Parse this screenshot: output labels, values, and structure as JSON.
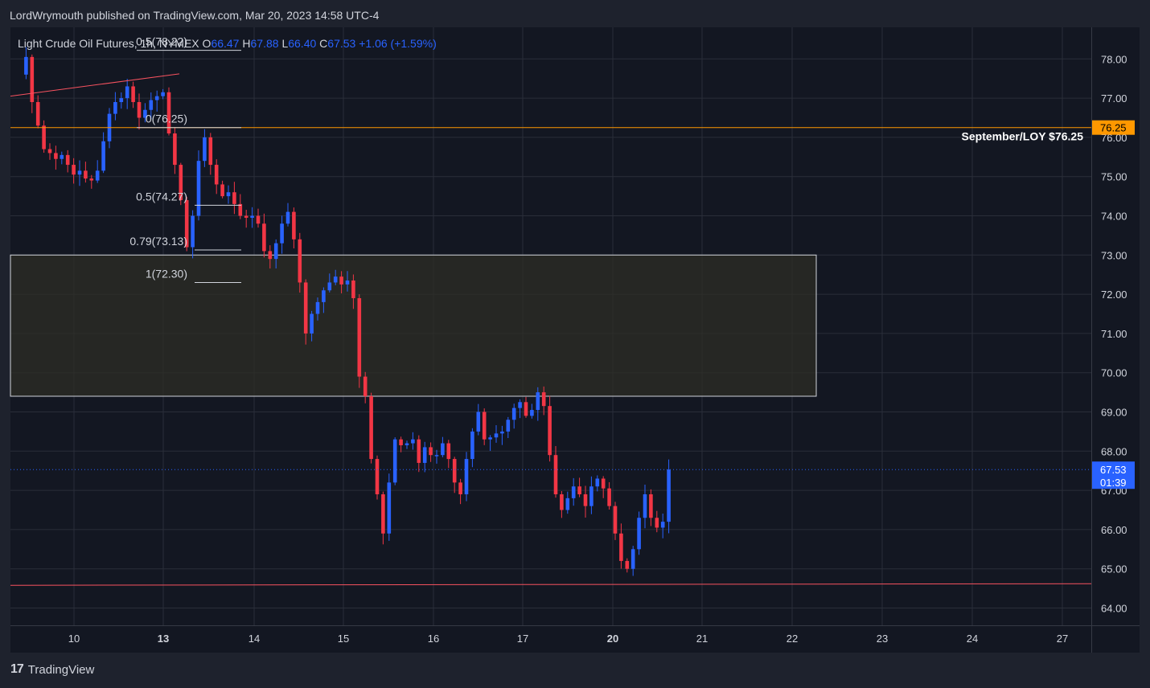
{
  "header": {
    "published_text": "LordWrymouth published on TradingView.com, Mar 20, 2023 14:58 UTC-4"
  },
  "footer": {
    "brand": "TradingView",
    "logo_glyph": "17"
  },
  "chart_data": {
    "type": "candlestick",
    "symbol": "Light Crude Oil Futures, 1h, NYMEX",
    "ohlc_labels": {
      "o": "O",
      "h": "H",
      "l": "L",
      "c": "C"
    },
    "ohlc": {
      "open": "66.47",
      "high": "67.88",
      "low": "66.40",
      "close": "67.53",
      "change": "+1.06 (+1.59%)"
    },
    "y_axis": {
      "ticks": [
        "64.00",
        "65.00",
        "66.00",
        "67.00",
        "68.00",
        "69.00",
        "70.00",
        "71.00",
        "72.00",
        "73.00",
        "74.00",
        "75.00",
        "76.00",
        "77.00",
        "78.00"
      ],
      "range": [
        63.6,
        78.6
      ]
    },
    "x_axis": {
      "labels": [
        "10",
        "13",
        "14",
        "15",
        "16",
        "17",
        "20",
        "21",
        "22",
        "23",
        "24",
        "27"
      ],
      "bold": [
        "13",
        "20"
      ]
    },
    "price_tag": {
      "price": "67.53",
      "countdown": "01:39",
      "color": "#2962ff"
    },
    "level_tag": {
      "price": "76.25",
      "color": "#ff9800"
    },
    "annotations": {
      "resistance_label": "September/LOY $76.25",
      "resistance_level": 76.25,
      "support_level": 64.6,
      "zone": {
        "top": 73.0,
        "bottom": 69.4
      },
      "fib_levels": [
        {
          "label": "0.5(78.22)",
          "price": 78.22
        },
        {
          "label": "0(76.25)",
          "price": 76.25
        },
        {
          "label": "0.5(74.27)",
          "price": 74.27
        },
        {
          "label": "0.79(73.13)",
          "price": 73.13
        },
        {
          "label": "1(72.30)",
          "price": 72.3
        }
      ],
      "trendline": {
        "start": 77.05,
        "end": 77.62
      }
    },
    "colors": {
      "up": "#2962ff",
      "down": "#f23645",
      "background": "#131722",
      "grid": "#2a2e39",
      "text": "#d1d4dc",
      "zone_fill": "#2e2e26"
    },
    "path": [
      [
        0,
        77.6
      ],
      [
        1,
        78.05
      ],
      [
        2,
        76.9
      ],
      [
        3,
        76.3
      ],
      [
        4,
        75.7
      ],
      [
        5,
        75.6
      ],
      [
        6,
        75.45
      ],
      [
        7,
        75.55
      ],
      [
        8,
        75.3
      ],
      [
        9,
        75.05
      ],
      [
        10,
        75.15
      ],
      [
        11,
        74.95
      ],
      [
        12,
        74.9
      ],
      [
        13,
        75.15
      ],
      [
        14,
        75.9
      ],
      [
        15,
        76.6
      ],
      [
        16,
        76.9
      ],
      [
        17,
        77.0
      ],
      [
        18,
        77.3
      ],
      [
        19,
        76.9
      ],
      [
        20,
        76.5
      ],
      [
        21,
        76.7
      ],
      [
        22,
        76.95
      ],
      [
        23,
        77.05
      ],
      [
        24,
        77.15
      ],
      [
        25,
        76.1
      ],
      [
        26,
        75.3
      ],
      [
        27,
        74.4
      ],
      [
        28,
        73.2
      ],
      [
        29,
        74.0
      ],
      [
        30,
        75.4
      ],
      [
        31,
        76.0
      ],
      [
        32,
        75.3
      ],
      [
        33,
        74.8
      ],
      [
        34,
        74.5
      ],
      [
        35,
        74.6
      ],
      [
        36,
        74.3
      ],
      [
        37,
        74.0
      ],
      [
        38,
        73.95
      ],
      [
        39,
        74.0
      ],
      [
        40,
        73.8
      ],
      [
        41,
        73.1
      ],
      [
        42,
        72.9
      ],
      [
        43,
        73.3
      ],
      [
        44,
        73.8
      ],
      [
        45,
        74.1
      ],
      [
        46,
        73.4
      ],
      [
        47,
        72.3
      ],
      [
        48,
        71.0
      ],
      [
        49,
        71.5
      ],
      [
        50,
        71.8
      ],
      [
        51,
        72.1
      ],
      [
        52,
        72.3
      ],
      [
        53,
        72.45
      ],
      [
        54,
        72.25
      ],
      [
        55,
        72.35
      ],
      [
        56,
        71.9
      ],
      [
        57,
        69.9
      ],
      [
        58,
        69.4
      ],
      [
        59,
        67.8
      ],
      [
        60,
        66.9
      ],
      [
        61,
        65.9
      ],
      [
        62,
        67.2
      ],
      [
        63,
        68.3
      ],
      [
        64,
        68.15
      ],
      [
        65,
        68.2
      ],
      [
        66,
        68.3
      ],
      [
        67,
        67.7
      ],
      [
        68,
        68.1
      ],
      [
        69,
        67.9
      ],
      [
        70,
        67.9
      ],
      [
        71,
        68.2
      ],
      [
        72,
        67.8
      ],
      [
        73,
        67.2
      ],
      [
        74,
        66.9
      ],
      [
        75,
        67.8
      ],
      [
        76,
        68.5
      ],
      [
        77,
        69.0
      ],
      [
        78,
        68.3
      ],
      [
        79,
        68.35
      ],
      [
        80,
        68.45
      ],
      [
        81,
        68.5
      ],
      [
        82,
        68.8
      ],
      [
        83,
        69.1
      ],
      [
        84,
        69.25
      ],
      [
        85,
        68.9
      ],
      [
        86,
        69.05
      ],
      [
        87,
        69.5
      ],
      [
        88,
        69.15
      ],
      [
        89,
        67.9
      ],
      [
        90,
        66.9
      ],
      [
        91,
        66.5
      ],
      [
        92,
        66.8
      ],
      [
        93,
        67.1
      ],
      [
        94,
        66.9
      ],
      [
        95,
        66.6
      ],
      [
        96,
        67.1
      ],
      [
        97,
        67.3
      ],
      [
        98,
        67.05
      ],
      [
        99,
        66.6
      ],
      [
        100,
        65.9
      ],
      [
        101,
        65.2
      ],
      [
        102,
        65.0
      ],
      [
        103,
        65.5
      ],
      [
        104,
        66.3
      ],
      [
        105,
        66.9
      ],
      [
        106,
        66.3
      ],
      [
        107,
        66.05
      ],
      [
        108,
        66.2
      ],
      [
        109,
        67.53
      ]
    ]
  }
}
